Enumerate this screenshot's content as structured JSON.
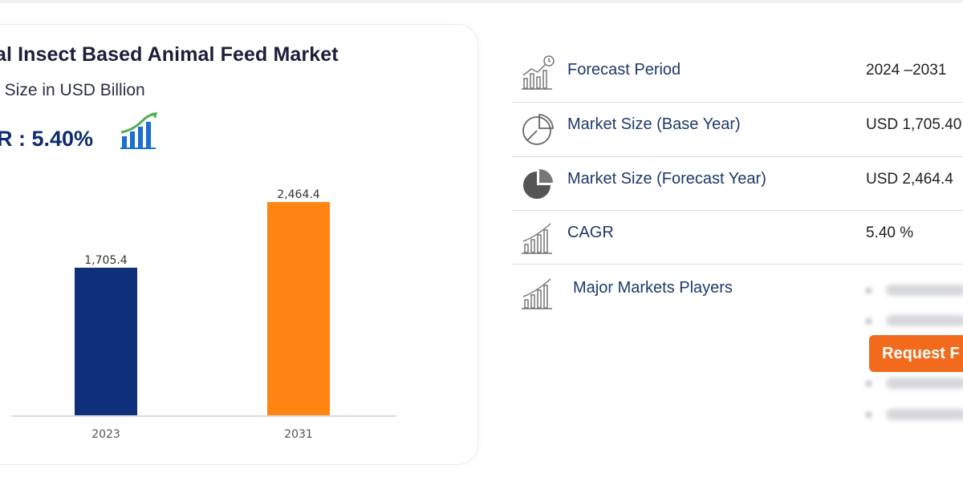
{
  "card": {
    "title": "al Insect Based Animal Feed Market",
    "subtitle": "t Size in USD Billion",
    "cagr_headline": "R : 5.40%"
  },
  "chart_data": {
    "type": "bar",
    "categories": [
      "2023",
      "2031"
    ],
    "values": [
      1705.4,
      2464.4
    ],
    "value_labels": [
      "1,705.4",
      "2,464.4"
    ],
    "colors": [
      "#0f2f7a",
      "#ff8411"
    ],
    "xlabel": "",
    "ylabel": "",
    "ylim": [
      0,
      2600
    ],
    "grid": false
  },
  "info": {
    "rows": [
      {
        "icon": "bar-chart-clock-icon",
        "label": "Forecast Period",
        "value": "2024 –2031"
      },
      {
        "icon": "pie-chart-outline-icon",
        "label": "Market Size (Base Year)",
        "value": "USD 1,705.40"
      },
      {
        "icon": "pie-chart-filled-icon",
        "label": "Market Size (Forecast Year)",
        "value": "USD 2,464.4"
      },
      {
        "icon": "growth-chart-icon",
        "label": "CAGR",
        "value": "5.40 %"
      },
      {
        "icon": "growth-chart-icon",
        "label": "Major Markets Players",
        "value": ""
      }
    ],
    "request_button": "Request F"
  }
}
